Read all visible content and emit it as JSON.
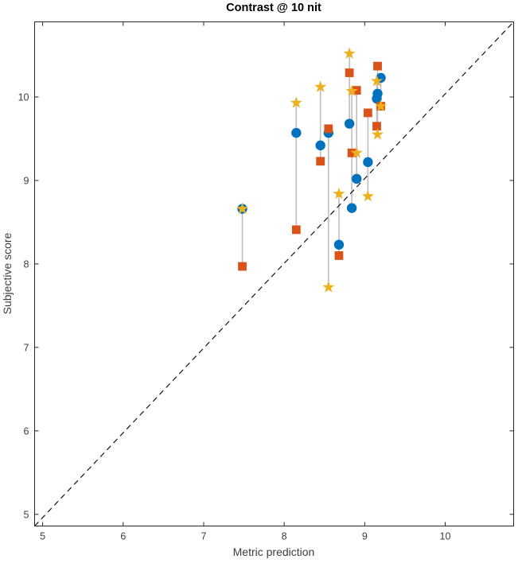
{
  "chart_data": {
    "type": "scatter",
    "title": "Contrast @ 10 nit",
    "xlabel": "Metric prediction",
    "ylabel": "Subjective score",
    "xlim": [
      4.9,
      10.85
    ],
    "ylim": [
      4.86,
      10.9
    ],
    "xticks": [
      5,
      6,
      7,
      8,
      9,
      10
    ],
    "yticks": [
      5,
      6,
      7,
      8,
      9,
      10
    ],
    "grid": false,
    "legend": "none",
    "box": true,
    "axis_color": "#262626",
    "identity_line": {
      "style": "dashed",
      "color": "#141414",
      "comment": "y = x reference line from bottom-left to top-right corner"
    },
    "connector_color": "#bebebe",
    "series": [
      {
        "name": "circle-metric",
        "marker": "circle",
        "color": "#0072BD"
      },
      {
        "name": "square-metric",
        "marker": "square",
        "color": "#D95319"
      },
      {
        "name": "star-metric",
        "marker": "pentagram",
        "color": "#EDB120"
      }
    ],
    "groups": [
      {
        "x": 7.48,
        "circle": 8.66,
        "square": 7.97,
        "star": 8.66
      },
      {
        "x": 8.15,
        "circle": 9.57,
        "square": 8.41,
        "star": 9.93
      },
      {
        "x": 8.45,
        "circle": 9.42,
        "square": 9.23,
        "star": 10.12
      },
      {
        "x": 8.55,
        "circle": 9.57,
        "square": 9.62,
        "star": 7.72
      },
      {
        "x": 8.68,
        "circle": 8.23,
        "square": 8.1,
        "star": 8.84
      },
      {
        "x": 8.81,
        "circle": 9.68,
        "square": 10.29,
        "star": 10.52
      },
      {
        "x": 8.84,
        "circle": 8.67,
        "square": 9.33,
        "star": 10.07
      },
      {
        "x": 8.9,
        "circle": 9.02,
        "square": 10.08,
        "star": 9.33
      },
      {
        "x": 9.04,
        "circle": 9.22,
        "square": 9.81,
        "star": 8.81
      },
      {
        "x": 9.15,
        "circle": 9.98,
        "square": 9.65,
        "star": 10.19
      },
      {
        "x": 9.16,
        "circle": 10.04,
        "square": 10.37,
        "star": 9.55
      },
      {
        "x": 9.2,
        "circle": 10.23,
        "square": 9.89,
        "star": 9.89
      }
    ]
  }
}
